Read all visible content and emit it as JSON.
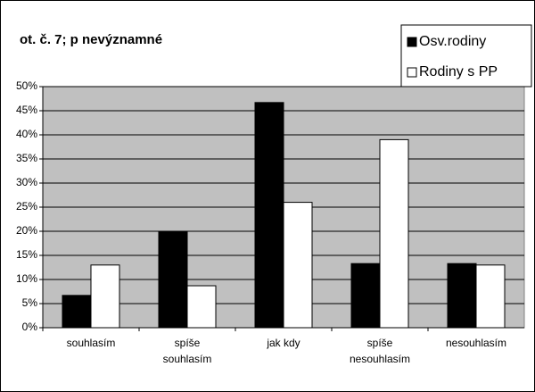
{
  "chart_data": {
    "type": "bar",
    "title": "ot. č. 7; p nevýznamné",
    "categories": [
      "souhlasím",
      "spíše\nsouhlasím",
      "jak kdy",
      "spíše\nnesouhlasím",
      "nesouhlasím"
    ],
    "series": [
      {
        "name": "Osv.rodiny",
        "color": "#000000",
        "values": [
          6.7,
          20,
          46.7,
          13.3,
          13.3
        ]
      },
      {
        "name": "Rodiny s PP",
        "color": "#ffffff",
        "values": [
          13,
          8.7,
          26,
          39,
          13
        ]
      }
    ],
    "ylim": [
      0,
      50
    ],
    "yticks": [
      {
        "value": 0,
        "label": "0%"
      },
      {
        "value": 5,
        "label": "5%"
      },
      {
        "value": 10,
        "label": "10%"
      },
      {
        "value": 15,
        "label": "15%"
      },
      {
        "value": 20,
        "label": "20%"
      },
      {
        "value": 25,
        "label": "25%"
      },
      {
        "value": 30,
        "label": "30%"
      },
      {
        "value": 35,
        "label": "35%"
      },
      {
        "value": 40,
        "label": "40%"
      },
      {
        "value": 45,
        "label": "45%"
      },
      {
        "value": 50,
        "label": "50%"
      }
    ],
    "grid": true,
    "background": "#c0c0c0",
    "legend": "top-right"
  }
}
